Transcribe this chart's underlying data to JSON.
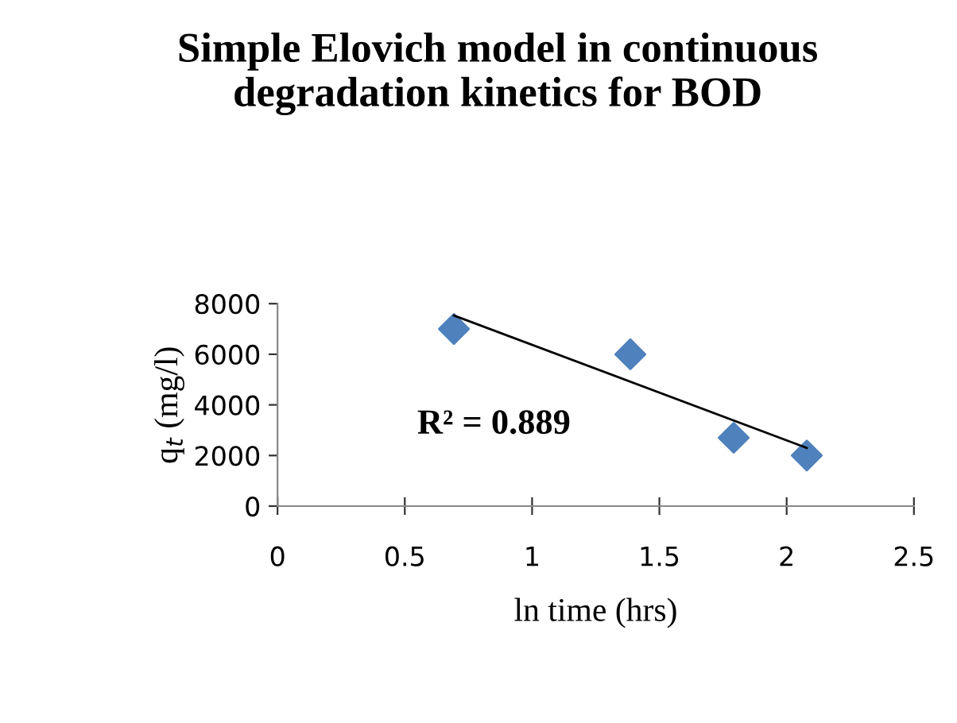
{
  "chart_data": {
    "type": "scatter",
    "title": "Simple Elovich model in continuous degradation kinetics for BOD",
    "xlabel": "ln time (hrs)",
    "ylabel": "q$_{t}$ (mg/l)",
    "series": [
      {
        "color": "#4f81bd",
        "marker": "diamond",
        "x": [
          0.693,
          1.386,
          1.792,
          2.079
        ],
        "values": [
          7000,
          6000,
          2700,
          2000
        ]
      },
      {
        "type": "line",
        "color": "#000000",
        "marker": "none",
        "x": [
          0.693,
          2.079
        ],
        "values": [
          7530,
          2300
        ]
      }
    ],
    "annotations": [
      "R² = 0.889"
    ],
    "xlim": [
      0,
      2.5
    ],
    "xticks": [
      0,
      0.5,
      1,
      1.5,
      2,
      2.5
    ],
    "ylim": [
      0,
      8000
    ],
    "yticks": [
      0,
      2000,
      4000,
      6000,
      8000
    ],
    "grid": false,
    "legend": false
  }
}
